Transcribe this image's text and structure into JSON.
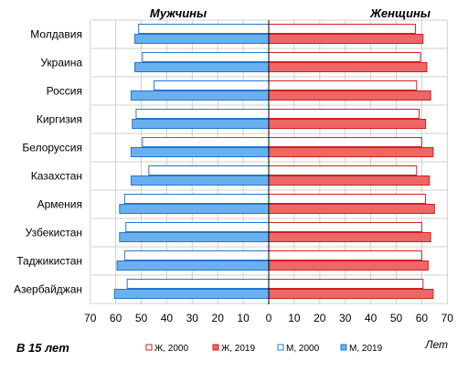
{
  "chart_data": {
    "type": "bar",
    "orientation": "horizontal",
    "layout": "butterfly",
    "panel_labels": {
      "left": "Мужчины",
      "right": "Женщины"
    },
    "note_left": "В 15 лет",
    "note_right": "Лет",
    "categories": [
      "Молдавия",
      "Украина",
      "Россия",
      "Киргизия",
      "Белоруссия",
      "Казахстан",
      "Армения",
      "Узбекистан",
      "Таджикистан",
      "Азербайджан"
    ],
    "x_ticks": [
      "70",
      "60",
      "50",
      "40",
      "30",
      "20",
      "10",
      "0",
      "10",
      "20",
      "30",
      "40",
      "50",
      "60",
      "70"
    ],
    "xlim": [
      -70,
      70
    ],
    "grid": true,
    "legend_position": "bottom",
    "series": [
      {
        "name": "Ж, 2000",
        "side": "right",
        "fill": "#ffffff",
        "stroke": "#cc2222",
        "values": [
          57.5,
          59.5,
          58,
          59,
          60,
          58,
          61.5,
          60,
          60,
          60.5
        ]
      },
      {
        "name": "Ж, 2019",
        "side": "right",
        "fill": "#ee6666",
        "stroke": "#cc2222",
        "values": [
          60.5,
          62,
          63.5,
          61.5,
          64.5,
          63,
          65,
          63.5,
          62.5,
          64.5
        ]
      },
      {
        "name": "М, 2000",
        "side": "left",
        "fill": "#ffffff",
        "stroke": "#2277cc",
        "values": [
          51,
          49.5,
          45,
          52,
          49.5,
          47,
          56.5,
          56,
          56.5,
          55.5
        ]
      },
      {
        "name": "М, 2019",
        "side": "left",
        "fill": "#6ab0ee",
        "stroke": "#2277cc",
        "values": [
          52.5,
          52.5,
          54,
          53.5,
          54,
          54,
          58.5,
          58.5,
          59.5,
          60.5
        ]
      }
    ]
  }
}
